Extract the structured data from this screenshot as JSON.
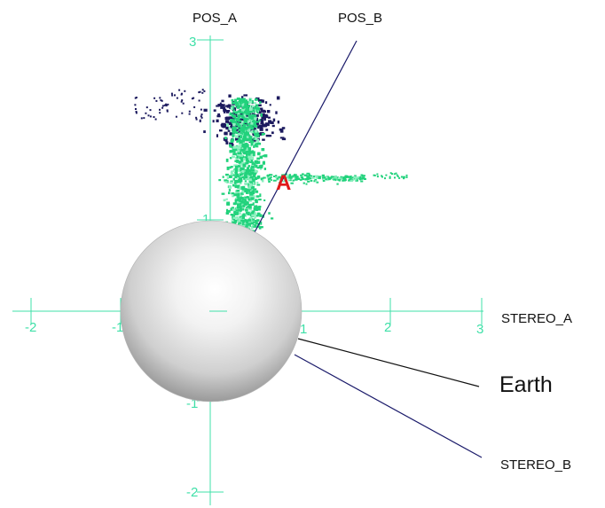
{
  "labels": {
    "pos_a": "POS_A",
    "pos_b": "POS_B",
    "stereo_a": "STEREO_A",
    "stereo_b": "STEREO_B",
    "earth": "Earth",
    "marker": "A"
  },
  "axes": {
    "x_ticks": [
      "-2",
      "-1",
      "1",
      "2",
      "3"
    ],
    "y_ticks": [
      "3",
      "1",
      "-1",
      "-2"
    ]
  },
  "colors": {
    "axis": "#3fe0a8",
    "cloud_dark": "#1c1a5e",
    "cloud_green": "#22d27c",
    "marker": "#e01a1a",
    "line_dark": "#1a1a6a"
  }
}
